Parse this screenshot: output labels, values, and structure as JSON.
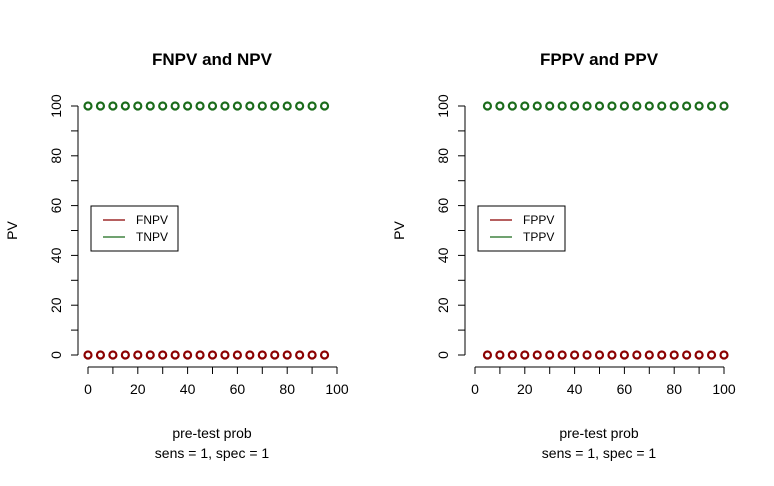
{
  "chart_data": [
    {
      "type": "scatter",
      "title": "FNPV and NPV",
      "xlabel": "pre-test prob",
      "xlabel2": "sens =  1, spec =  1",
      "ylabel": "PV",
      "xlim": [
        0,
        100
      ],
      "ylim": [
        0,
        100
      ],
      "xticks": [
        "0",
        "20",
        "40",
        "60",
        "80",
        "100"
      ],
      "yticks": [
        "0",
        "20",
        "40",
        "60",
        "80",
        "100"
      ],
      "legend": {
        "position": "left-middle",
        "entries": [
          "FNPV",
          "TNPV"
        ]
      },
      "series": [
        {
          "name": "FNPV",
          "color": "#8b0000",
          "x": [
            0,
            5,
            10,
            15,
            20,
            25,
            30,
            35,
            40,
            45,
            50,
            55,
            60,
            65,
            70,
            75,
            80,
            85,
            90,
            95
          ],
          "y": [
            0,
            0,
            0,
            0,
            0,
            0,
            0,
            0,
            0,
            0,
            0,
            0,
            0,
            0,
            0,
            0,
            0,
            0,
            0,
            0
          ]
        },
        {
          "name": "TNPV",
          "color": "#1a6b1a",
          "x": [
            0,
            5,
            10,
            15,
            20,
            25,
            30,
            35,
            40,
            45,
            50,
            55,
            60,
            65,
            70,
            75,
            80,
            85,
            90,
            95
          ],
          "y": [
            100,
            100,
            100,
            100,
            100,
            100,
            100,
            100,
            100,
            100,
            100,
            100,
            100,
            100,
            100,
            100,
            100,
            100,
            100,
            100
          ]
        }
      ]
    },
    {
      "type": "scatter",
      "title": "FPPV and PPV",
      "xlabel": "pre-test prob",
      "xlabel2": "sens =  1, spec =  1",
      "ylabel": "PV",
      "xlim": [
        0,
        100
      ],
      "ylim": [
        0,
        100
      ],
      "xticks": [
        "0",
        "20",
        "40",
        "60",
        "80",
        "100"
      ],
      "yticks": [
        "0",
        "20",
        "40",
        "60",
        "80",
        "100"
      ],
      "legend": {
        "position": "left-middle",
        "entries": [
          "FPPV",
          "TPPV"
        ]
      },
      "series": [
        {
          "name": "FPPV",
          "color": "#8b0000",
          "x": [
            5,
            10,
            15,
            20,
            25,
            30,
            35,
            40,
            45,
            50,
            55,
            60,
            65,
            70,
            75,
            80,
            85,
            90,
            95,
            100
          ],
          "y": [
            0,
            0,
            0,
            0,
            0,
            0,
            0,
            0,
            0,
            0,
            0,
            0,
            0,
            0,
            0,
            0,
            0,
            0,
            0,
            0
          ]
        },
        {
          "name": "TPPV",
          "color": "#1a6b1a",
          "x": [
            5,
            10,
            15,
            20,
            25,
            30,
            35,
            40,
            45,
            50,
            55,
            60,
            65,
            70,
            75,
            80,
            85,
            90,
            95,
            100
          ],
          "y": [
            100,
            100,
            100,
            100,
            100,
            100,
            100,
            100,
            100,
            100,
            100,
            100,
            100,
            100,
            100,
            100,
            100,
            100,
            100,
            100
          ]
        }
      ]
    }
  ]
}
